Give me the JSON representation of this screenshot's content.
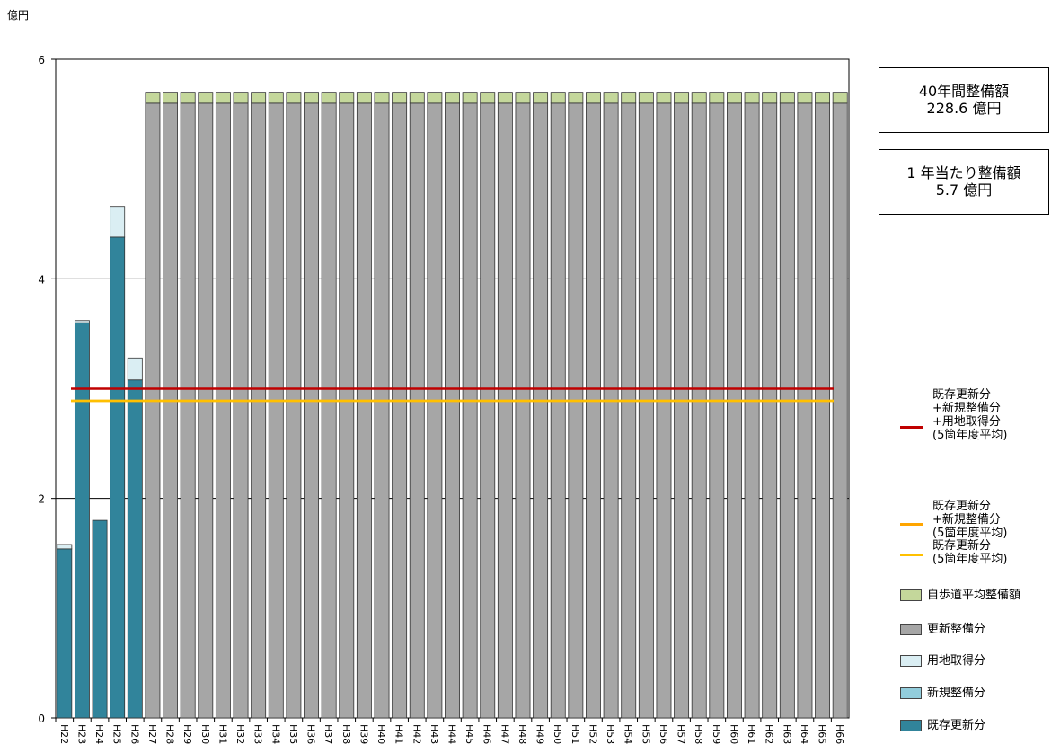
{
  "unit_label": "億円",
  "info": {
    "total_title": "40年間整備額",
    "total_value": "228.6 億円",
    "annual_title": "1 年当たり整備額",
    "annual_value": "5.7 億円"
  },
  "legend": {
    "line_red": [
      "既存更新分",
      "+新規整備分",
      "+用地取得分",
      "(5箇年度平均)"
    ],
    "line_orange": [
      "既存更新分",
      "+新規整備分",
      "(5箇年度平均)"
    ],
    "line_yellow": [
      "既存更新分",
      "(5箇年度平均)"
    ],
    "sw_green": "自歩道平均整備額",
    "sw_gray": "更新整備分",
    "sw_paleblue": "用地取得分",
    "sw_lightblue": "新規整備分",
    "sw_teal": "既存更新分"
  },
  "colors": {
    "existing": "#31849B",
    "new": "#92CDDC",
    "land": "#DAEEF3",
    "renewal": "#A6A6A6",
    "average": "#C4D79B",
    "line_red": "#C00000",
    "line_orange": "#FFA500",
    "line_yellow": "#FFC000"
  },
  "chart_data": {
    "type": "bar",
    "stacked": true,
    "ylim": [
      0,
      6
    ],
    "yticks": [
      0,
      2,
      4,
      6
    ],
    "grid": true,
    "categories": [
      "H22",
      "H23",
      "H24",
      "H25",
      "H26",
      "H27",
      "H28",
      "H29",
      "H30",
      "H31",
      "H32",
      "H33",
      "H34",
      "H35",
      "H36",
      "H37",
      "H38",
      "H39",
      "H40",
      "H41",
      "H42",
      "H43",
      "H44",
      "H45",
      "H46",
      "H47",
      "H48",
      "H49",
      "H50",
      "H51",
      "H52",
      "H53",
      "H54",
      "H55",
      "H56",
      "H57",
      "H58",
      "H59",
      "H60",
      "H61",
      "H62",
      "H63",
      "H64",
      "H65",
      "H66"
    ],
    "series": [
      {
        "name": "既存更新分",
        "values": [
          1.54,
          3.6,
          1.8,
          4.38,
          3.08,
          0,
          0,
          0,
          0,
          0,
          0,
          0,
          0,
          0,
          0,
          0,
          0,
          0,
          0,
          0,
          0,
          0,
          0,
          0,
          0,
          0,
          0,
          0,
          0,
          0,
          0,
          0,
          0,
          0,
          0,
          0,
          0,
          0,
          0,
          0,
          0,
          0,
          0,
          0,
          0
        ]
      },
      {
        "name": "新規整備分",
        "values": [
          0,
          0,
          0,
          0,
          0,
          0,
          0,
          0,
          0,
          0,
          0,
          0,
          0,
          0,
          0,
          0,
          0,
          0,
          0,
          0,
          0,
          0,
          0,
          0,
          0,
          0,
          0,
          0,
          0,
          0,
          0,
          0,
          0,
          0,
          0,
          0,
          0,
          0,
          0,
          0,
          0,
          0,
          0,
          0,
          0
        ]
      },
      {
        "name": "用地取得分",
        "values": [
          0.04,
          0.02,
          0,
          0.28,
          0.2,
          0,
          0,
          0,
          0,
          0,
          0,
          0,
          0,
          0,
          0,
          0,
          0,
          0,
          0,
          0,
          0,
          0,
          0,
          0,
          0,
          0,
          0,
          0,
          0,
          0,
          0,
          0,
          0,
          0,
          0,
          0,
          0,
          0,
          0,
          0,
          0,
          0,
          0,
          0,
          0
        ]
      },
      {
        "name": "更新整備分",
        "values": [
          0,
          0,
          0,
          0,
          0,
          5.6,
          5.6,
          5.6,
          5.6,
          5.6,
          5.6,
          5.6,
          5.6,
          5.6,
          5.6,
          5.6,
          5.6,
          5.6,
          5.6,
          5.6,
          5.6,
          5.6,
          5.6,
          5.6,
          5.6,
          5.6,
          5.6,
          5.6,
          5.6,
          5.6,
          5.6,
          5.6,
          5.6,
          5.6,
          5.6,
          5.6,
          5.6,
          5.6,
          5.6,
          5.6,
          5.6,
          5.6,
          5.6,
          5.6,
          5.6
        ]
      },
      {
        "name": "自歩道平均整備額",
        "values": [
          0,
          0,
          0,
          0,
          0,
          0.1,
          0.1,
          0.1,
          0.1,
          0.1,
          0.1,
          0.1,
          0.1,
          0.1,
          0.1,
          0.1,
          0.1,
          0.1,
          0.1,
          0.1,
          0.1,
          0.1,
          0.1,
          0.1,
          0.1,
          0.1,
          0.1,
          0.1,
          0.1,
          0.1,
          0.1,
          0.1,
          0.1,
          0.1,
          0.1,
          0.1,
          0.1,
          0.1,
          0.1,
          0.1,
          0.1,
          0.1,
          0.1,
          0.1,
          0.1
        ]
      }
    ],
    "lines": [
      {
        "name": "既存更新分+新規整備分+用地取得分(5箇年度平均)",
        "value": 3.0
      },
      {
        "name": "既存更新分+新規整備分(5箇年度平均)",
        "value": 2.89
      },
      {
        "name": "既存更新分(5箇年度平均)",
        "value": 2.89
      }
    ]
  }
}
